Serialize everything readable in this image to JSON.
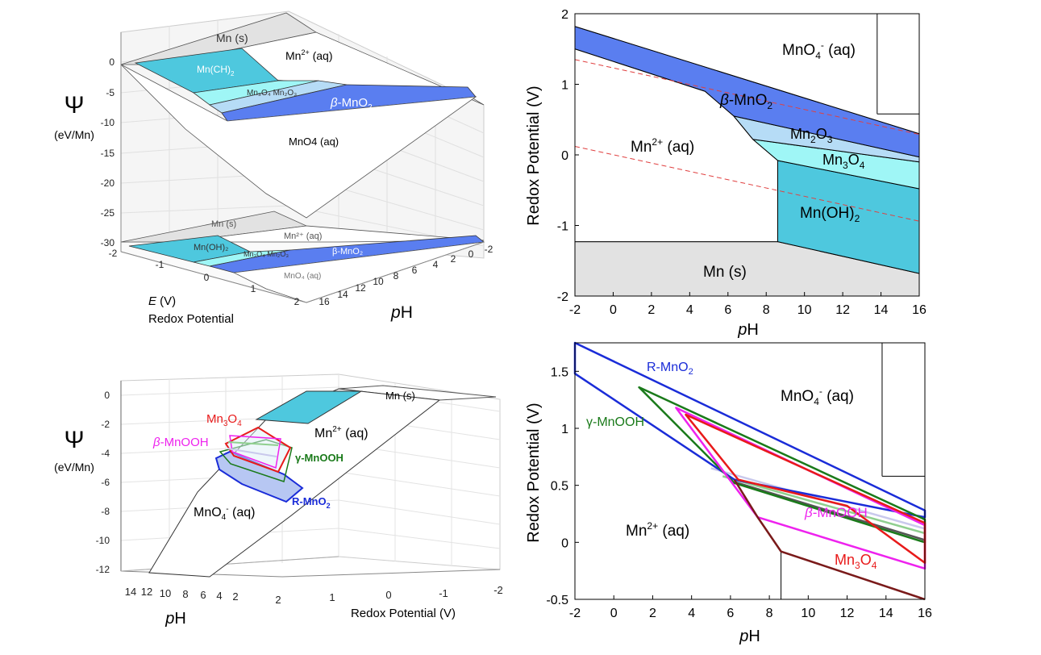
{
  "colors": {
    "mn_solid": "#e2e2e2",
    "mn_oh2": "#4ec8de",
    "mn3o4": "#9ff6f6",
    "mn2o3": "#b6dcf6",
    "beta_mno2": "#5a7ef0",
    "axis": "#000000",
    "water_line": "#e04040",
    "r_mno2": "#1a2cd8",
    "gamma_mnooh": "#1a7a1a",
    "beta_mnooh": "#ee22ee",
    "mn3o4_line": "#e81a1a",
    "mn_boundary": "#7a1a1a"
  },
  "panel_a": {
    "psi_symbol": "Ψ",
    "psi_unit": "(eV/Mn)",
    "psi_ticks": [
      "0",
      "-5",
      "-10",
      "-15",
      "-20",
      "-25",
      "-30"
    ],
    "e_ticks": [
      "-2",
      "-1",
      "0",
      "1",
      "2"
    ],
    "ph_ticks": [
      "16",
      "14",
      "12",
      "10",
      "8",
      "6",
      "4",
      "2",
      "0",
      "-2"
    ],
    "e_label_var": "E",
    "e_label_unit": " (V)",
    "e_label_name": "Redox Potential",
    "ph_label_p": "p",
    "ph_label_h": "H",
    "upper_labels": {
      "mn_s": "Mn (s)",
      "mn2": "Mn",
      "mn2_sup": "2+",
      "mn2_tail": " (aq)",
      "mnoh2": "Mn(CH)",
      "mnoh2_sub": "2",
      "mn3o4_mn2o3": "Mn₃O₄  Mn₂O₃",
      "beta": "β",
      "beta_tail": "-MnO",
      "beta_sub": "2",
      "mno4": "MnO4  (aq)"
    },
    "lower_labels": {
      "mn_s": "Mn (s)",
      "mn2": "Mn²⁺ (aq)",
      "mnoh2": "Mn(OH)₂",
      "mn3o4_mn2o3": "Mn₃O₄  Mn₂O₃",
      "beta": "β-MnO₂",
      "mno4": "MnO₄ (aq)"
    }
  },
  "panel_b": {
    "ylabel": "Redox Potential (V)",
    "xlabel_p": "p",
    "xlabel_h": "H",
    "labels": {
      "mno4": "MnO",
      "mno4_sub": "4",
      "mno4_sup": "-",
      "mno4_tail": " (aq)",
      "beta": "β",
      "beta_tail": "-MnO",
      "beta_sub": "2",
      "mn2o3": "Mn",
      "mn2o3_sub1": "2",
      "mn2o3_mid": "O",
      "mn2o3_sub2": "3",
      "mn3o4": "Mn",
      "mn3o4_sub1": "3",
      "mn3o4_mid": "O",
      "mn3o4_sub2": "4",
      "mn2": "Mn",
      "mn2_sup": "2+",
      "mn2_tail": " (aq)",
      "mnoh2": "Mn(OH)",
      "mnoh2_sub": "2",
      "mn_s": "Mn (s)"
    }
  },
  "panel_c": {
    "psi_symbol": "Ψ",
    "psi_unit": "(eV/Mn)",
    "psi_ticks": [
      "0",
      "-2",
      "-4",
      "-6",
      "-8",
      "-10",
      "-12"
    ],
    "ph_ticks": [
      "14",
      "12",
      "10",
      "8",
      "6",
      "4",
      "2"
    ],
    "e_ticks": [
      "2",
      "1",
      "0",
      "-1",
      "-2"
    ],
    "ph_label_p": "p",
    "ph_label_h": "H",
    "e_label": "Redox Potential (V)",
    "labels": {
      "mn_s": "Mn (s)",
      "mn3o4": "Mn",
      "mn3o4_sub1": "3",
      "mn3o4_mid": "O",
      "mn3o4_sub2": "4",
      "beta": "β",
      "beta_tail": "-MnOOH",
      "mn2": "Mn",
      "mn2_sup": "2+",
      "mn2_tail": " (aq)",
      "gamma": "γ-MnOOH",
      "rmno2": "R-MnO",
      "rmno2_sub": "2",
      "mno4": "MnO",
      "mno4_sub": "4",
      "mno4_sup": "-",
      "mno4_tail": " (aq)"
    }
  },
  "panel_d": {
    "ylabel": "Redox Potential (V)",
    "xlabel_p": "p",
    "xlabel_h": "H",
    "labels": {
      "rmno2": "R-MnO",
      "rmno2_sub": "2",
      "mno4": "MnO",
      "mno4_sub": "4",
      "mno4_sup": "-",
      "mno4_tail": " (aq)",
      "gamma": "γ-MnOOH",
      "beta": "β",
      "beta_tail": "-MnOOH",
      "mn2": "Mn",
      "mn2_sup": "2+",
      "mn2_tail": " (aq)",
      "mn3o4": "Mn",
      "mn3o4_sub1": "3",
      "mn3o4_mid": "O",
      "mn3o4_sub2": "4"
    }
  },
  "chart_data": [
    {
      "id": "panel_b",
      "type": "area",
      "xlabel": "pH",
      "ylabel": "Redox Potential (V)",
      "xlim": [
        -2,
        16
      ],
      "ylim": [
        -2,
        2
      ],
      "xticks": [
        -2,
        0,
        2,
        4,
        6,
        8,
        10,
        12,
        14,
        16
      ],
      "yticks": [
        -2,
        -1,
        0,
        1,
        2
      ],
      "grid": false,
      "regions": [
        {
          "name": "Mn (s)",
          "color": "#e2e2e2",
          "points": [
            [
              -2,
              -1.23
            ],
            [
              8.6,
              -1.23
            ],
            [
              16,
              -1.68
            ],
            [
              16,
              -2
            ],
            [
              -2,
              -2
            ]
          ]
        },
        {
          "name": "Mn(OH)₂",
          "color": "#4ec8de",
          "points": [
            [
              8.6,
              -0.08
            ],
            [
              16,
              -0.48
            ],
            [
              16,
              -1.68
            ],
            [
              8.6,
              -1.23
            ]
          ]
        },
        {
          "name": "Mn₃O₄",
          "color": "#9ff6f6",
          "points": [
            [
              7.3,
              0.22
            ],
            [
              16,
              -0.1
            ],
            [
              16,
              -0.48
            ],
            [
              8.6,
              -0.08
            ]
          ]
        },
        {
          "name": "Mn₂O₃",
          "color": "#b6dcf6",
          "points": [
            [
              6.3,
              0.55
            ],
            [
              16,
              -0.03
            ],
            [
              16,
              -0.1
            ],
            [
              7.3,
              0.22
            ]
          ]
        },
        {
          "name": "β-MnO₂",
          "color": "#5a7ef0",
          "points": [
            [
              -2,
              1.82
            ],
            [
              16,
              0.3
            ],
            [
              16,
              -0.03
            ],
            [
              6.3,
              0.55
            ],
            [
              4.8,
              0.9
            ],
            [
              -2,
              1.5
            ]
          ]
        },
        {
          "name": "Mn²⁺ (aq)",
          "color": "#ffffff",
          "points": [
            [
              -2,
              1.5
            ],
            [
              4.8,
              0.9
            ],
            [
              6.3,
              0.55
            ],
            [
              7.3,
              0.22
            ],
            [
              8.6,
              -0.08
            ],
            [
              8.6,
              -1.23
            ],
            [
              -2,
              -1.23
            ]
          ]
        },
        {
          "name": "MnO₄⁻ (aq)",
          "color": "#ffffff",
          "points": [
            [
              -2,
              1.82
            ],
            [
              16,
              0.3
            ],
            [
              16,
              2
            ],
            [
              -2,
              2
            ]
          ]
        }
      ],
      "boundary_lines": [
        [
          [
            13.8,
            0.58
          ],
          [
            16,
            0.58
          ]
        ],
        [
          [
            13.8,
            0.58
          ],
          [
            13.8,
            2.0
          ]
        ]
      ],
      "water_lines": [
        [
          [
            -2,
            1.35
          ],
          [
            16,
            0.29
          ]
        ],
        [
          [
            -2,
            0.12
          ],
          [
            16,
            -0.94
          ]
        ]
      ]
    },
    {
      "id": "panel_d",
      "type": "line",
      "xlabel": "pH",
      "ylabel": "Redox Potential (V)",
      "xlim": [
        -2,
        16
      ],
      "ylim": [
        -0.5,
        1.75
      ],
      "xticks": [
        -2,
        0,
        2,
        4,
        6,
        8,
        10,
        12,
        14,
        16
      ],
      "yticks": [
        -0.5,
        0,
        0.5,
        1,
        1.5
      ],
      "grid": false,
      "series": [
        {
          "name": "R-MnO₂",
          "color": "#1a2cd8",
          "closed": true,
          "points": [
            [
              -2,
              1.75
            ],
            [
              16,
              0.28
            ],
            [
              16,
              0.22
            ],
            [
              6.2,
              0.55
            ],
            [
              -2,
              1.48
            ]
          ]
        },
        {
          "name": "γ-MnOOH",
          "color": "#1a7a1a",
          "closed": true,
          "points": [
            [
              1.3,
              1.36
            ],
            [
              16,
              0.2
            ],
            [
              16,
              0.0
            ],
            [
              6.2,
              0.52
            ]
          ]
        },
        {
          "name": "β-MnOOH",
          "color": "#ee22ee",
          "closed": true,
          "points": [
            [
              3.2,
              1.18
            ],
            [
              16,
              0.15
            ],
            [
              16,
              -0.23
            ],
            [
              7.4,
              0.22
            ]
          ]
        },
        {
          "name": "Mn₃O₄",
          "color": "#e81a1a",
          "closed": true,
          "points": [
            [
              3.7,
              1.12
            ],
            [
              16,
              0.17
            ],
            [
              16,
              -0.18
            ],
            [
              12,
              0.32
            ],
            [
              6.4,
              0.55
            ]
          ]
        },
        {
          "name": "Mn²⁺ boundary",
          "color": "#7a1a1a",
          "closed": false,
          "points": [
            [
              6.2,
              0.55
            ],
            [
              7.4,
              0.22
            ],
            [
              8.6,
              -0.08
            ],
            [
              16,
              -0.5
            ]
          ]
        }
      ],
      "extra_lines": [
        {
          "color": "#000000",
          "points": [
            [
              8.6,
              -0.08
            ],
            [
              8.6,
              -0.5
            ]
          ]
        },
        {
          "color": "#000000",
          "points": [
            [
              13.8,
              0.58
            ],
            [
              16,
              0.58
            ]
          ]
        },
        {
          "color": "#000000",
          "points": [
            [
              13.8,
              0.58
            ],
            [
              13.8,
              1.75
            ]
          ]
        },
        {
          "color": "#555555",
          "points": [
            [
              6.2,
              0.53
            ],
            [
              16,
              0.02
            ]
          ]
        },
        {
          "color": "#8fcf8f",
          "points": [
            [
              5.6,
              0.58
            ],
            [
              16,
              0.08
            ]
          ]
        },
        {
          "color": "#c9c9ec",
          "points": [
            [
              5.0,
              0.65
            ],
            [
              16,
              0.12
            ]
          ]
        }
      ]
    }
  ]
}
